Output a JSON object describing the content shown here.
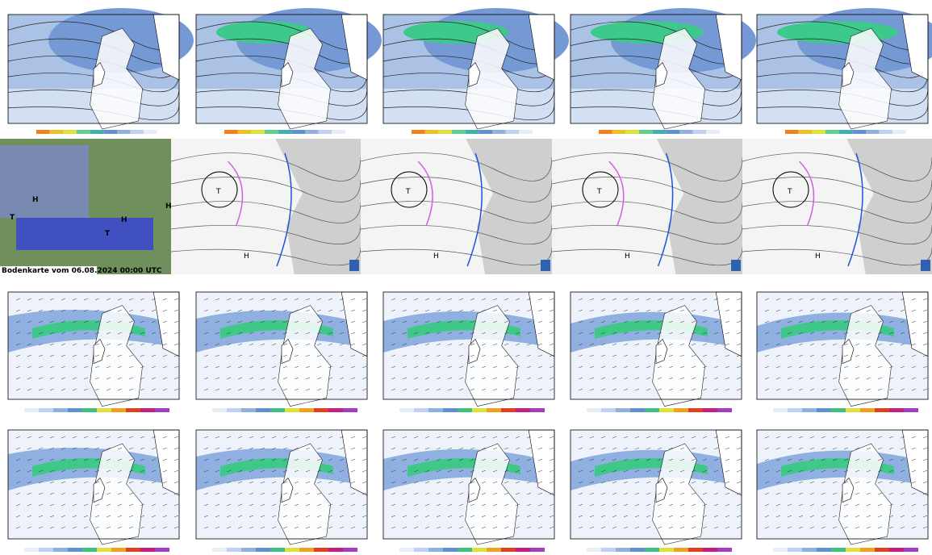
{
  "bodenkarte_label": "Bodenkarte vom 06.08.2024 00:00 UTC",
  "high_label": "H",
  "low_label": "T"
}
